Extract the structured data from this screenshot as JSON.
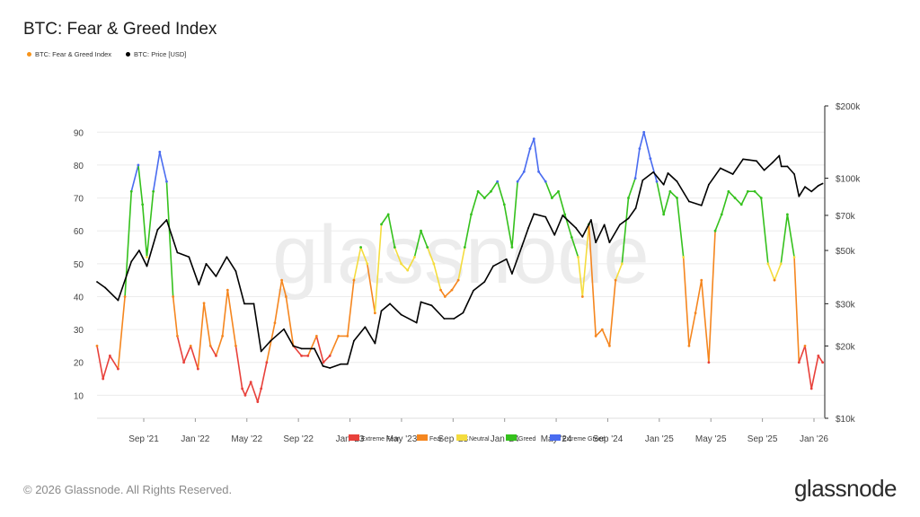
{
  "title": "BTC: Fear & Greed Index",
  "legend": {
    "fng_label": "BTC: Fear & Greed Index",
    "fng_color": "#f7931a",
    "price_label": "BTC: Price [USD]",
    "price_color": "#000000"
  },
  "footer": "© 2026 Glassnode. All Rights Reserved.",
  "brand": "glassnode",
  "watermark": "glassnode",
  "zone_colors": {
    "extreme_fear": "#e8413b",
    "fear": "#f5861f",
    "neutral": "#f4dc3e",
    "greed": "#35c11d",
    "extreme_greed": "#4a6cf0"
  },
  "chart_data": {
    "type": "line",
    "title": "BTC: Fear & Greed Index",
    "x_ticks": [
      "Sep '21",
      "Jan '22",
      "May '22",
      "Sep '22",
      "Jan '23",
      "May '23",
      "Sep '23",
      "Jan '24",
      "May '24",
      "Sep '24",
      "Jan '25",
      "May '25",
      "Sep '25",
      "Jan '26"
    ],
    "x_range": [
      "2021-06-01",
      "2026-01-20"
    ],
    "y_left": {
      "ticks": [
        10,
        20,
        30,
        40,
        50,
        60,
        70,
        80,
        90
      ],
      "range": [
        3,
        98
      ]
    },
    "y_right": {
      "ticks": [
        "$10k",
        "$20k",
        "$30k",
        "$50k",
        "$70k",
        "$100k",
        "$200k"
      ],
      "tick_values": [
        10000,
        20000,
        30000,
        50000,
        70000,
        100000,
        200000
      ],
      "scale": "log",
      "range": [
        10000,
        200000
      ]
    },
    "grid": "horizontal",
    "legend_position": "top-left",
    "zone_legend": [
      "Extreme Fear",
      "Fear",
      "Neutral",
      "Greed",
      "Extreme Greed"
    ],
    "series": [
      {
        "name": "BTC: Fear & Greed Index",
        "x": [
          "2021-06-01",
          "2021-06-15",
          "2021-07-01",
          "2021-07-20",
          "2021-08-05",
          "2021-08-20",
          "2021-09-05",
          "2021-09-15",
          "2021-09-25",
          "2021-10-10",
          "2021-10-25",
          "2021-11-10",
          "2021-11-25",
          "2021-12-05",
          "2021-12-20",
          "2022-01-05",
          "2022-01-22",
          "2022-02-05",
          "2022-02-20",
          "2022-03-05",
          "2022-03-20",
          "2022-04-01",
          "2022-04-20",
          "2022-05-05",
          "2022-05-12",
          "2022-05-25",
          "2022-06-10",
          "2022-06-18",
          "2022-07-01",
          "2022-07-20",
          "2022-08-05",
          "2022-08-15",
          "2022-09-01",
          "2022-09-20",
          "2022-10-05",
          "2022-10-25",
          "2022-11-10",
          "2022-11-25",
          "2022-12-15",
          "2023-01-05",
          "2023-01-20",
          "2023-02-05",
          "2023-02-20",
          "2023-03-10",
          "2023-03-25",
          "2023-04-10",
          "2023-04-25",
          "2023-05-10",
          "2023-05-25",
          "2023-06-10",
          "2023-06-25",
          "2023-07-10",
          "2023-07-25",
          "2023-08-10",
          "2023-08-20",
          "2023-09-05",
          "2023-09-20",
          "2023-10-05",
          "2023-10-20",
          "2023-11-05",
          "2023-11-20",
          "2023-12-05",
          "2023-12-20",
          "2024-01-05",
          "2024-01-23",
          "2024-02-05",
          "2024-02-20",
          "2024-03-05",
          "2024-03-14",
          "2024-03-25",
          "2024-04-10",
          "2024-04-25",
          "2024-05-10",
          "2024-05-25",
          "2024-06-10",
          "2024-06-25",
          "2024-07-05",
          "2024-07-20",
          "2024-08-05",
          "2024-08-20",
          "2024-09-06",
          "2024-09-20",
          "2024-10-05",
          "2024-10-20",
          "2024-11-05",
          "2024-11-15",
          "2024-11-25",
          "2024-12-10",
          "2024-12-25",
          "2025-01-10",
          "2025-01-25",
          "2025-02-10",
          "2025-02-25",
          "2025-03-10",
          "2025-03-25",
          "2025-04-08",
          "2025-04-25",
          "2025-05-10",
          "2025-05-25",
          "2025-06-10",
          "2025-06-25",
          "2025-07-10",
          "2025-07-25",
          "2025-08-10",
          "2025-08-25",
          "2025-09-10",
          "2025-09-25",
          "2025-10-10",
          "2025-10-25",
          "2025-11-10",
          "2025-11-21",
          "2025-12-05",
          "2025-12-20",
          "2026-01-05",
          "2026-01-15"
        ],
        "values": [
          25,
          15,
          22,
          18,
          40,
          72,
          80,
          68,
          52,
          72,
          84,
          75,
          40,
          28,
          20,
          25,
          18,
          38,
          25,
          22,
          28,
          42,
          25,
          12,
          10,
          14,
          8,
          12,
          20,
          32,
          45,
          40,
          25,
          22,
          22,
          28,
          20,
          22,
          28,
          28,
          45,
          55,
          50,
          35,
          62,
          65,
          55,
          50,
          48,
          52,
          60,
          55,
          50,
          42,
          40,
          42,
          45,
          55,
          65,
          72,
          70,
          72,
          75,
          68,
          55,
          75,
          78,
          85,
          88,
          78,
          75,
          70,
          72,
          65,
          58,
          52,
          40,
          62,
          28,
          30,
          25,
          45,
          50,
          70,
          76,
          85,
          90,
          82,
          75,
          65,
          72,
          70,
          52,
          25,
          35,
          45,
          20,
          60,
          65,
          72,
          70,
          68,
          72,
          72,
          70,
          50,
          45,
          50,
          65,
          52,
          20,
          25,
          12,
          22,
          20
        ],
        "zones": {
          "extreme_fear": [
            0,
            25
          ],
          "fear": [
            25,
            46
          ],
          "neutral": [
            46,
            54
          ],
          "greed": [
            54,
            75
          ],
          "extreme_greed": [
            75,
            100
          ]
        }
      },
      {
        "name": "BTC: Price [USD]",
        "x": [
          "2021-06-01",
          "2021-06-20",
          "2021-07-20",
          "2021-08-20",
          "2021-09-07",
          "2021-09-25",
          "2021-10-20",
          "2021-11-10",
          "2021-12-05",
          "2022-01-01",
          "2022-01-24",
          "2022-02-10",
          "2022-03-05",
          "2022-03-30",
          "2022-04-20",
          "2022-05-10",
          "2022-06-01",
          "2022-06-18",
          "2022-07-10",
          "2022-08-10",
          "2022-09-01",
          "2022-09-20",
          "2022-10-20",
          "2022-11-09",
          "2022-11-25",
          "2022-12-20",
          "2023-01-05",
          "2023-01-20",
          "2023-02-15",
          "2023-03-10",
          "2023-03-25",
          "2023-04-14",
          "2023-05-10",
          "2023-06-15",
          "2023-06-25",
          "2023-07-20",
          "2023-08-18",
          "2023-09-10",
          "2023-10-01",
          "2023-10-25",
          "2023-11-20",
          "2023-12-10",
          "2024-01-10",
          "2024-01-23",
          "2024-02-15",
          "2024-03-01",
          "2024-03-14",
          "2024-04-10",
          "2024-05-01",
          "2024-05-20",
          "2024-06-20",
          "2024-07-05",
          "2024-07-25",
          "2024-08-05",
          "2024-08-25",
          "2024-09-06",
          "2024-09-30",
          "2024-10-20",
          "2024-11-06",
          "2024-11-22",
          "2024-12-17",
          "2025-01-10",
          "2025-01-20",
          "2025-02-10",
          "2025-03-10",
          "2025-04-08",
          "2025-04-25",
          "2025-05-22",
          "2025-06-20",
          "2025-07-14",
          "2025-08-14",
          "2025-09-01",
          "2025-09-20",
          "2025-10-06",
          "2025-10-11",
          "2025-10-25",
          "2025-11-10",
          "2025-11-21",
          "2025-12-05",
          "2025-12-20",
          "2026-01-05",
          "2026-01-15"
        ],
        "values": [
          37000,
          35000,
          31000,
          45000,
          50000,
          43000,
          61000,
          67000,
          49000,
          47000,
          36000,
          44000,
          39000,
          47000,
          41000,
          30000,
          30000,
          19000,
          21000,
          23500,
          20000,
          19500,
          19500,
          16500,
          16200,
          16800,
          16800,
          21000,
          24000,
          20500,
          28000,
          30000,
          27000,
          25000,
          30500,
          29500,
          26000,
          26000,
          27500,
          34000,
          37000,
          43000,
          46000,
          40000,
          52000,
          62000,
          71000,
          69000,
          58000,
          70000,
          62000,
          57000,
          67000,
          54000,
          64000,
          54000,
          64000,
          68000,
          75000,
          98000,
          106000,
          94000,
          105000,
          97000,
          80000,
          77000,
          94000,
          110000,
          104000,
          120000,
          118000,
          108000,
          116000,
          124000,
          112000,
          112000,
          104000,
          84000,
          92000,
          88000,
          93000,
          95000
        ]
      }
    ]
  }
}
